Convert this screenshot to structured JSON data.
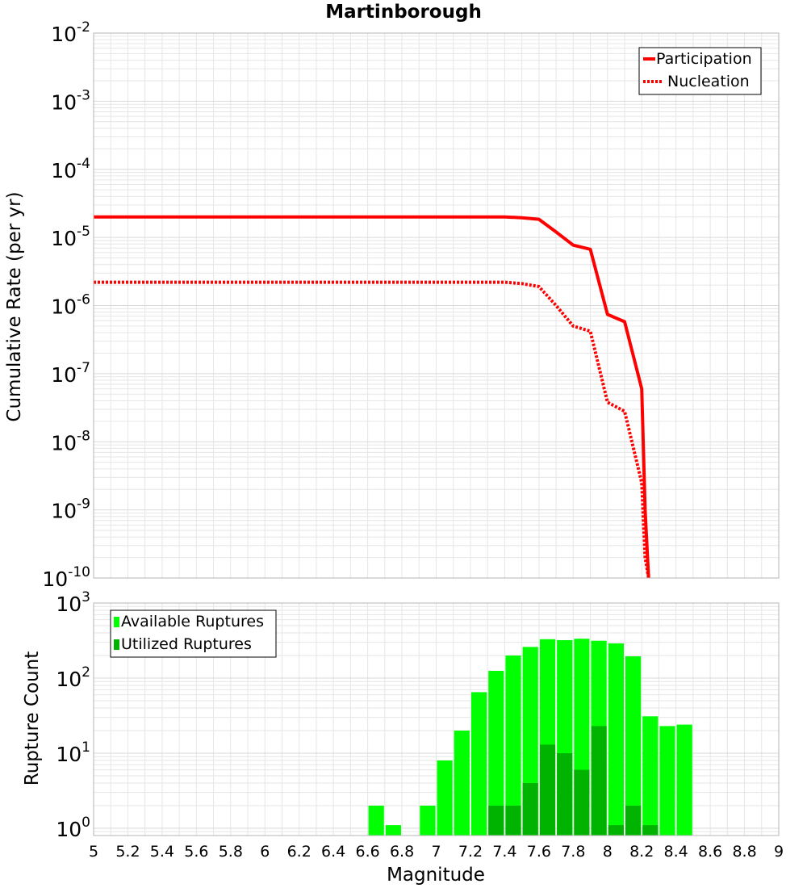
{
  "colors": {
    "participation": "#ff0000",
    "nucleation": "#ff0000",
    "available": "#00ff00",
    "utilized": "#00b300",
    "grid": "#e6e6e6",
    "frame": "#b4b4b4"
  },
  "chart_data": [
    {
      "type": "line",
      "title": "Martinborough",
      "xlabel": "",
      "ylabel": "Cumulative Rate (per yr)",
      "xlim": [
        5,
        9
      ],
      "ylim": [
        1e-10,
        0.01
      ],
      "yscale": "log",
      "ytick_exponents": [
        "-2",
        "-3",
        "-4",
        "-5",
        "-6",
        "-7",
        "-8",
        "-9",
        "-10"
      ],
      "grid": true,
      "legend_position": "top-right",
      "series": [
        {
          "name": "Participation",
          "style": "solid",
          "x": [
            5.0,
            5.2,
            5.4,
            5.6,
            5.8,
            6.0,
            6.2,
            6.4,
            6.6,
            6.8,
            7.0,
            7.2,
            7.4,
            7.5,
            7.6,
            7.7,
            7.8,
            7.9,
            8.0,
            8.1,
            8.2,
            8.22,
            8.24
          ],
          "y": [
            2e-05,
            2e-05,
            2e-05,
            2e-05,
            2e-05,
            2e-05,
            2e-05,
            2e-05,
            2e-05,
            2e-05,
            2e-05,
            2e-05,
            2e-05,
            1.95e-05,
            1.85e-05,
            1.2e-05,
            7.7e-06,
            6.7e-06,
            7.4e-07,
            5.8e-07,
            6e-08,
            1e-09,
            1e-10
          ]
        },
        {
          "name": "Nucleation",
          "style": "dotted",
          "x": [
            5.0,
            5.2,
            5.4,
            5.6,
            5.8,
            6.0,
            6.2,
            6.4,
            6.6,
            6.8,
            7.0,
            7.2,
            7.4,
            7.5,
            7.6,
            7.7,
            7.8,
            7.9,
            8.0,
            8.1,
            8.2,
            8.22,
            8.24
          ],
          "y": [
            2.2e-06,
            2.2e-06,
            2.2e-06,
            2.2e-06,
            2.2e-06,
            2.2e-06,
            2.2e-06,
            2.2e-06,
            2.2e-06,
            2.2e-06,
            2.2e-06,
            2.2e-06,
            2.2e-06,
            2.1e-06,
            1.9e-06,
            1e-06,
            5e-07,
            4.2e-07,
            3.8e-08,
            2.8e-08,
            2.5e-09,
            2e-10,
            1e-10
          ]
        }
      ]
    },
    {
      "type": "bar",
      "title": "",
      "xlabel": "Magnitude",
      "ylabel": "Rupture Count",
      "xlim": [
        5,
        9
      ],
      "ylim": [
        0.8,
        1000
      ],
      "yscale": "log",
      "ytick_exponents": [
        "3",
        "2",
        "1",
        "0"
      ],
      "xtick_labels": [
        "5",
        "5.2",
        "5.4",
        "5.6",
        "5.8",
        "6",
        "6.2",
        "6.4",
        "6.6",
        "6.8",
        "7",
        "7.2",
        "7.4",
        "7.6",
        "7.8",
        "8",
        "8.2",
        "8.4",
        "8.6",
        "8.8",
        "9"
      ],
      "grid": true,
      "legend_position": "top-left",
      "bin_width": 0.1,
      "series": [
        {
          "name": "Available Ruptures",
          "x": [
            6.65,
            6.75,
            6.95,
            7.05,
            7.15,
            7.25,
            7.35,
            7.45,
            7.55,
            7.65,
            7.75,
            7.85,
            7.95,
            8.05,
            8.15,
            8.25,
            8.35,
            8.45
          ],
          "values": [
            2,
            1.1,
            2,
            8,
            20,
            65,
            125,
            200,
            260,
            330,
            320,
            335,
            315,
            290,
            195,
            31,
            23,
            24
          ]
        },
        {
          "name": "Utilized Ruptures",
          "x": [
            7.35,
            7.45,
            7.55,
            7.65,
            7.75,
            7.85,
            7.95,
            8.05,
            8.15,
            8.25
          ],
          "values": [
            2,
            2,
            4,
            13,
            10,
            6,
            23,
            1.1,
            2,
            1.1
          ]
        }
      ]
    }
  ]
}
